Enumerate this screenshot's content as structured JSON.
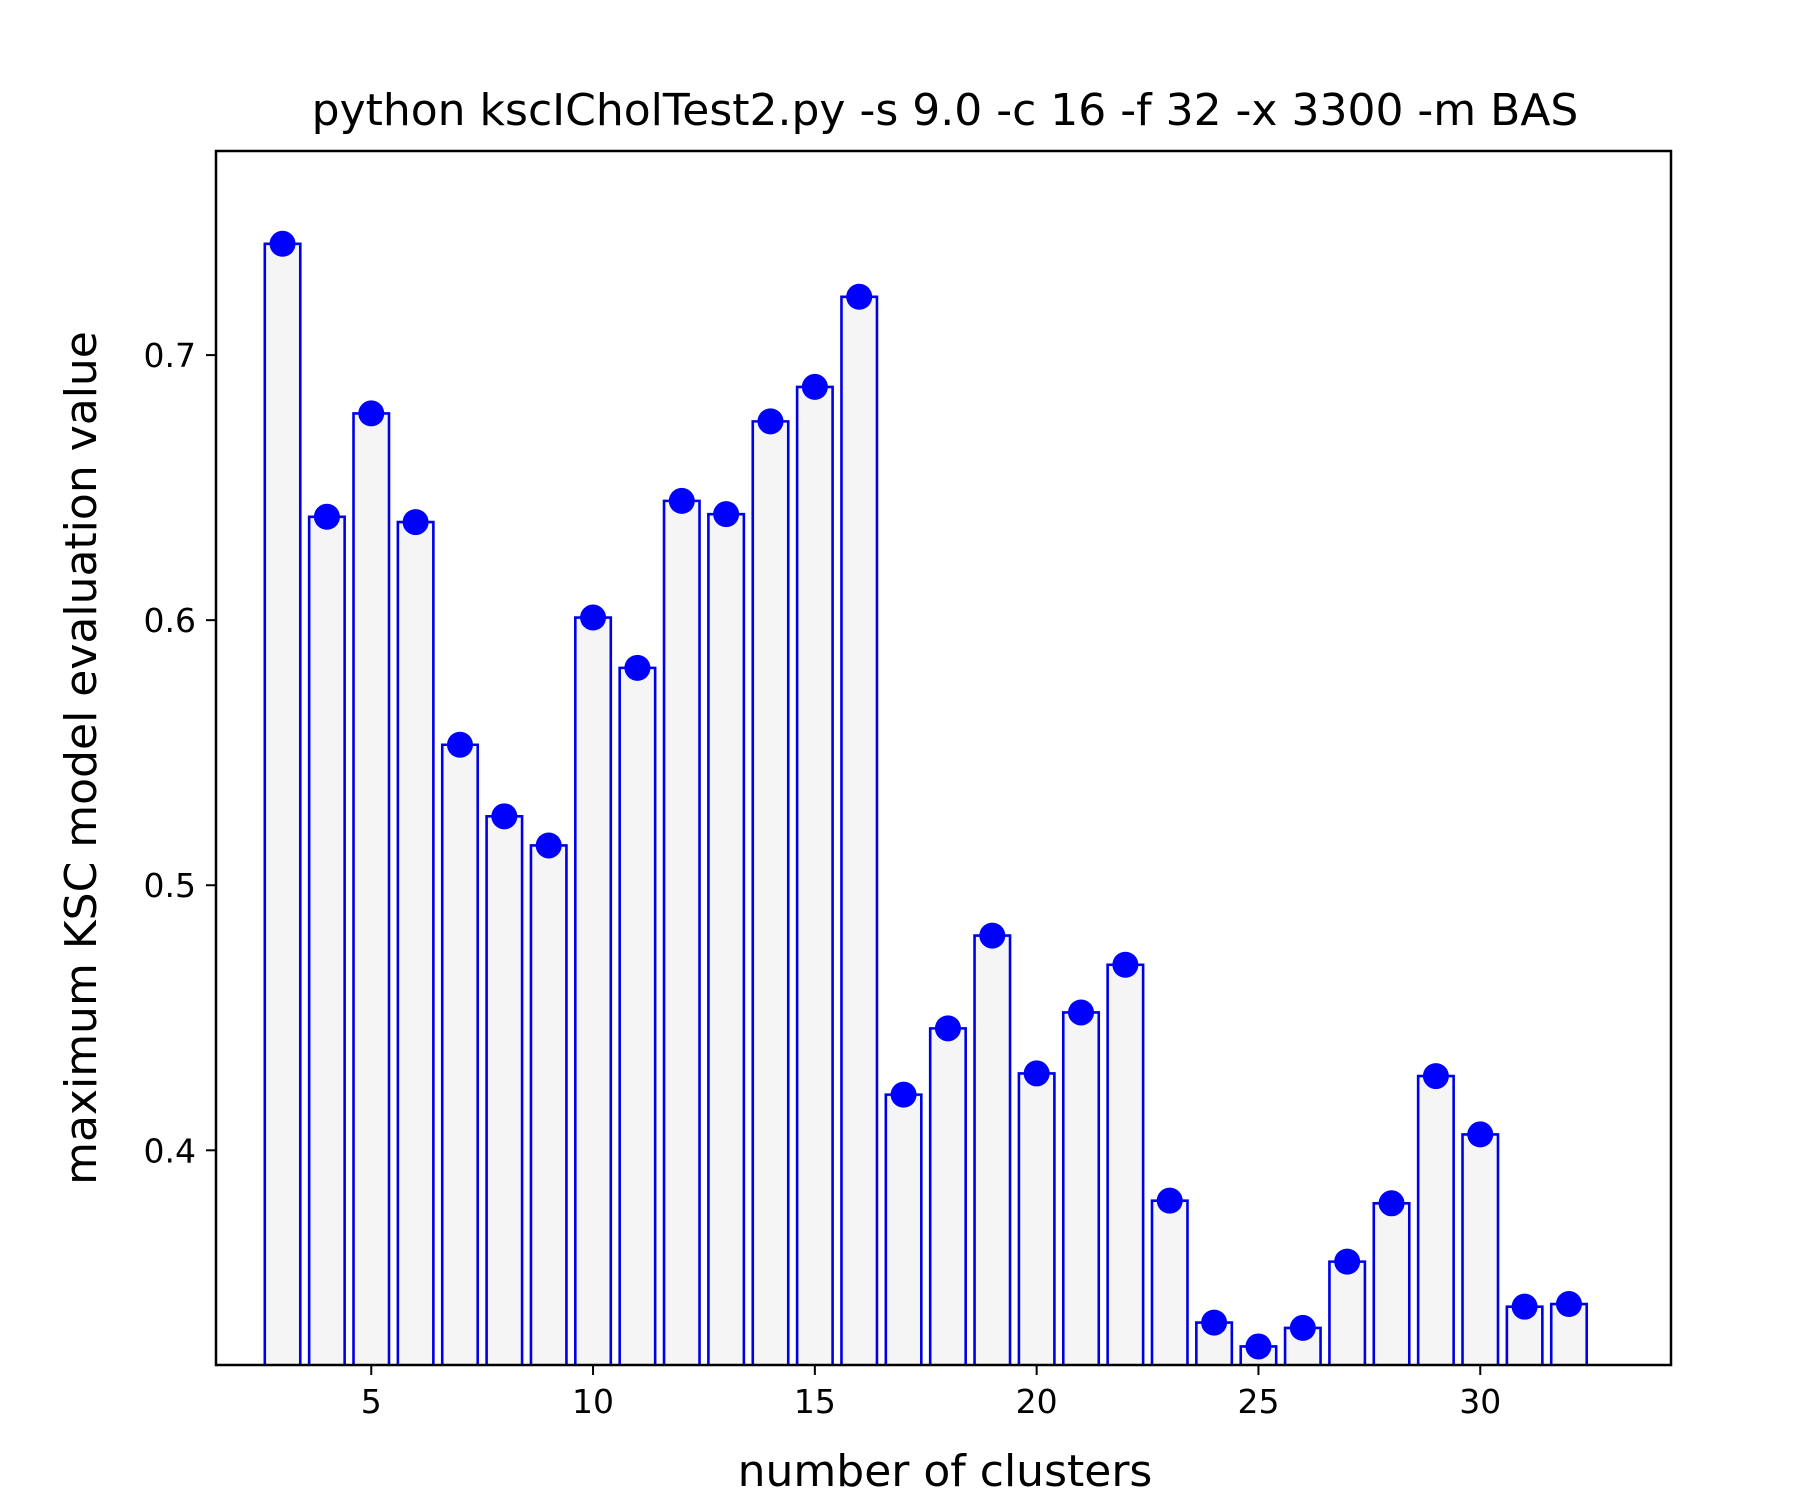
{
  "chart_data": {
    "type": "bar",
    "title": "python kscICholTest2.py -s 9.0 -c 16 -f 32 -x 3300 -m BAS",
    "xlabel": "number of clusters",
    "ylabel": "maximum KSC model evaluation value",
    "x": [
      3,
      4,
      5,
      6,
      7,
      8,
      9,
      10,
      11,
      12,
      13,
      14,
      15,
      16,
      17,
      18,
      19,
      20,
      21,
      22,
      23,
      24,
      25,
      26,
      27,
      28,
      29,
      30,
      31,
      32
    ],
    "values": [
      0.742,
      0.639,
      0.678,
      0.637,
      0.553,
      0.526,
      0.515,
      0.601,
      0.582,
      0.645,
      0.64,
      0.675,
      0.688,
      0.722,
      0.421,
      0.446,
      0.481,
      0.429,
      0.452,
      0.47,
      0.381,
      0.335,
      0.326,
      0.333,
      0.358,
      0.38,
      0.428,
      0.406,
      0.341,
      0.342
    ],
    "xlim": [
      1.5,
      34.3
    ],
    "ylim": [
      0.319,
      0.777
    ],
    "xticks": [
      5,
      10,
      15,
      20,
      25,
      30
    ],
    "xtick_labels": [
      "5",
      "10",
      "15",
      "20",
      "25",
      "30"
    ],
    "yticks": [
      0.4,
      0.5,
      0.6,
      0.7
    ],
    "ytick_labels": [
      "0.4",
      "0.5",
      "0.6",
      "0.7"
    ],
    "grid": false,
    "bar_face_color": "#f5f5f5",
    "bar_edge_color": "#0000e6",
    "marker_color": "#0000ff",
    "marker_shape": "circle"
  }
}
